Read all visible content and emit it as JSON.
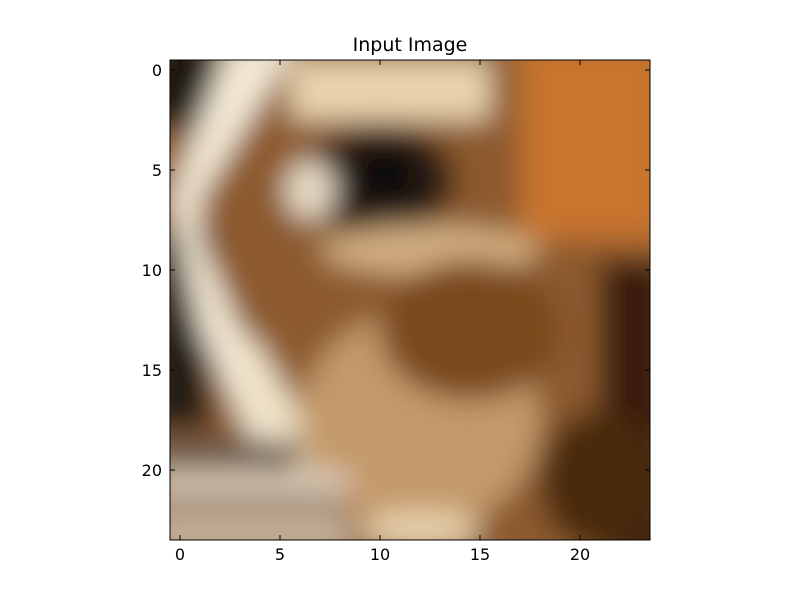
{
  "figure": {
    "title": "Input Image"
  },
  "chart_data": {
    "type": "heatmap",
    "title": "Input Image",
    "xlabel": "",
    "ylabel": "",
    "xlim": [
      -0.5,
      23.5
    ],
    "ylim": [
      23.5,
      -0.5
    ],
    "x_ticks": [
      0,
      5,
      10,
      15,
      20
    ],
    "y_ticks": [
      0,
      5,
      10,
      15,
      20
    ],
    "x_tick_labels": [
      "0",
      "5",
      "10",
      "15",
      "20"
    ],
    "y_tick_labels": [
      "0",
      "5",
      "10",
      "15",
      "20"
    ],
    "grid": false,
    "image_description_colors": {
      "dark": "#1e120a",
      "cream": "#f3e6cf",
      "brown": "#8a5a2b",
      "tan": "#c39a6b",
      "orange": "#c8742e",
      "deep_brown": "#3a1e0c"
    }
  }
}
